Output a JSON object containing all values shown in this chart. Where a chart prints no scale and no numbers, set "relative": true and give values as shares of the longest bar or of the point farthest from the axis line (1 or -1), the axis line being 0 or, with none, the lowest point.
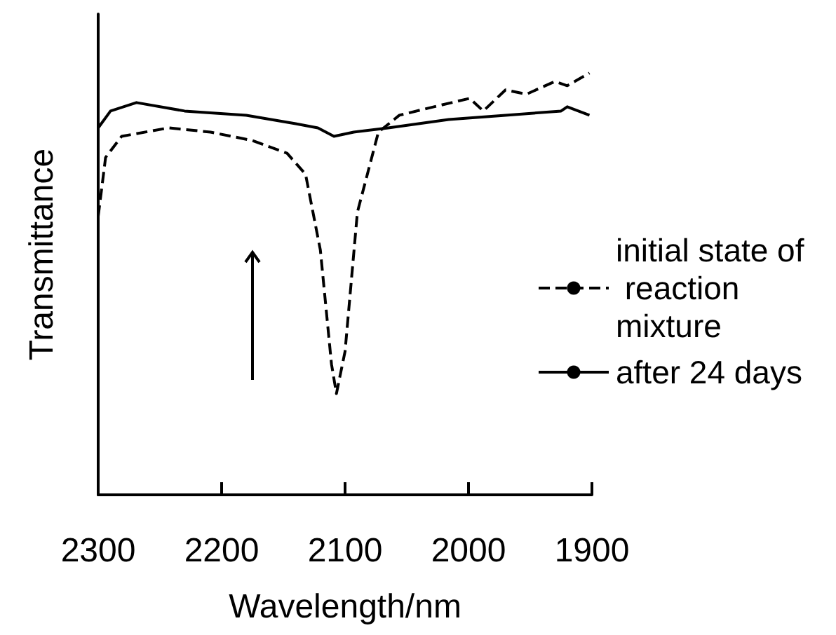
{
  "chart_data": {
    "type": "line",
    "xlabel": "Wavelength/nm",
    "ylabel": "Transmittance",
    "relative": true,
    "xlim": [
      2300,
      1900
    ],
    "xticks": [
      2300,
      2200,
      2100,
      2000,
      1900
    ],
    "marker": "none",
    "legend": "right",
    "grid": false,
    "series": [
      {
        "name": "initial state of reaction mixture",
        "color": "#000000",
        "line_style": "dashed",
        "x": [
          2300,
          2294,
          2281,
          2243,
          2209,
          2175,
          2147,
          2132,
          2120,
          2111,
          2107,
          2100,
          2090,
          2073,
          2056,
          2028,
          1999,
          1988,
          1970,
          1953,
          1930,
          1920,
          1902
        ],
        "values": [
          0.66,
          0.8,
          0.85,
          0.87,
          0.86,
          0.84,
          0.81,
          0.76,
          0.58,
          0.31,
          0.24,
          0.34,
          0.67,
          0.86,
          0.9,
          0.92,
          0.94,
          0.91,
          0.96,
          0.95,
          0.98,
          0.97,
          1
        ]
      },
      {
        "name": "after 24 days",
        "color": "#000000",
        "line_style": "solid",
        "x": [
          2300,
          2290,
          2269,
          2230,
          2180,
          2140,
          2122,
          2109,
          2093,
          2065,
          2016,
          1970,
          1925,
          1920,
          1902
        ],
        "values": [
          0.87,
          0.91,
          0.93,
          0.91,
          0.9,
          0.88,
          0.87,
          0.85,
          0.86,
          0.87,
          0.89,
          0.9,
          0.91,
          0.92,
          0.9
        ]
      }
    ]
  }
}
